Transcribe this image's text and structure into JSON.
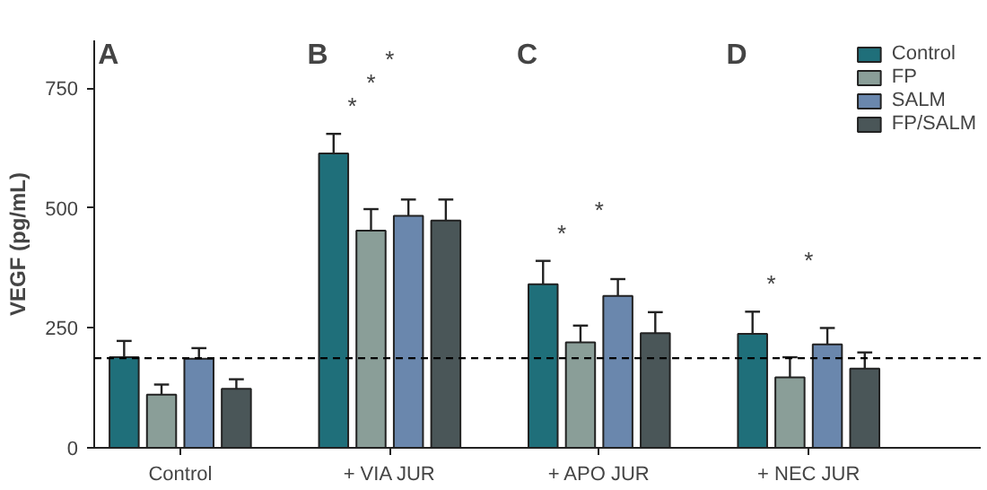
{
  "chart_data": {
    "type": "bar",
    "ylabel": "VEGF (pg/mL)",
    "categories": [
      "Control",
      "+ VIA JUR",
      "+ APO JUR",
      "+ NEC JUR"
    ],
    "ylim": [
      0,
      850
    ],
    "yticks": [
      0,
      250,
      500,
      750
    ],
    "grid": false,
    "legend": "top right",
    "series": [
      {
        "name": "Control",
        "color": "#1f6f7a",
        "values": [
          189,
          614,
          341,
          238
        ],
        "errors": [
          34,
          41,
          49,
          46
        ]
      },
      {
        "name": "FP",
        "color": "#8a9e98",
        "values": [
          111,
          453,
          220,
          147
        ],
        "errors": [
          21,
          45,
          35,
          42
        ]
      },
      {
        "name": "SALM",
        "color": "#6a87ad",
        "values": [
          186,
          484,
          317,
          216
        ],
        "errors": [
          22,
          34,
          35,
          34
        ]
      },
      {
        "name": "FP/SALM",
        "color": "#4a5658",
        "values": [
          123,
          474,
          239,
          165
        ],
        "errors": [
          20,
          44,
          44,
          34
        ]
      }
    ],
    "ref_lines": [
      {
        "axis": "y",
        "value": 187,
        "line_style": "dashed",
        "color": "#000000"
      }
    ],
    "annotations": [
      "A",
      "B",
      "C",
      "D",
      "*",
      "*",
      "*",
      "*",
      "*",
      "*",
      "*"
    ]
  }
}
